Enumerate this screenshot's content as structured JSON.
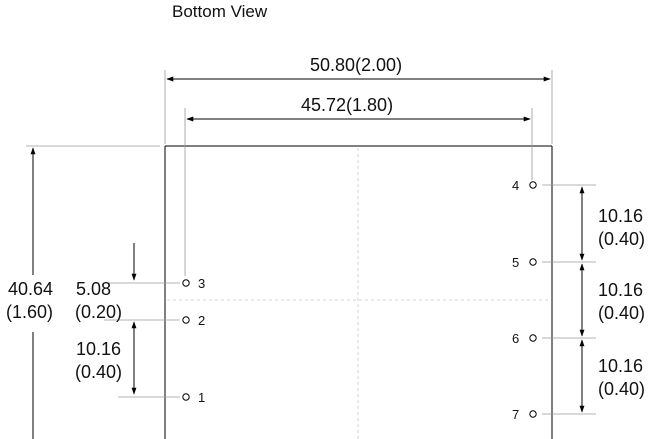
{
  "view_title": "Bottom View",
  "dimensions": {
    "overall_width": "50.80(2.00)",
    "pin_span": "45.72(1.80)",
    "overall_height_mm": "40.64",
    "overall_height_in": "(1.60)",
    "offset_mm": "5.08",
    "offset_in": "(0.20)",
    "left_pitch_mm": "10.16",
    "left_pitch_in": "(0.40)",
    "right_pitch_1_mm": "10.16",
    "right_pitch_1_in": "(0.40)",
    "right_pitch_2_mm": "10.16",
    "right_pitch_2_in": "(0.40)",
    "right_pitch_3_mm": "10.16",
    "right_pitch_3_in": "(0.40)"
  },
  "pins": [
    {
      "label": "1"
    },
    {
      "label": "2"
    },
    {
      "label": "3"
    },
    {
      "label": "4"
    },
    {
      "label": "5"
    },
    {
      "label": "6"
    },
    {
      "label": "7"
    }
  ]
}
